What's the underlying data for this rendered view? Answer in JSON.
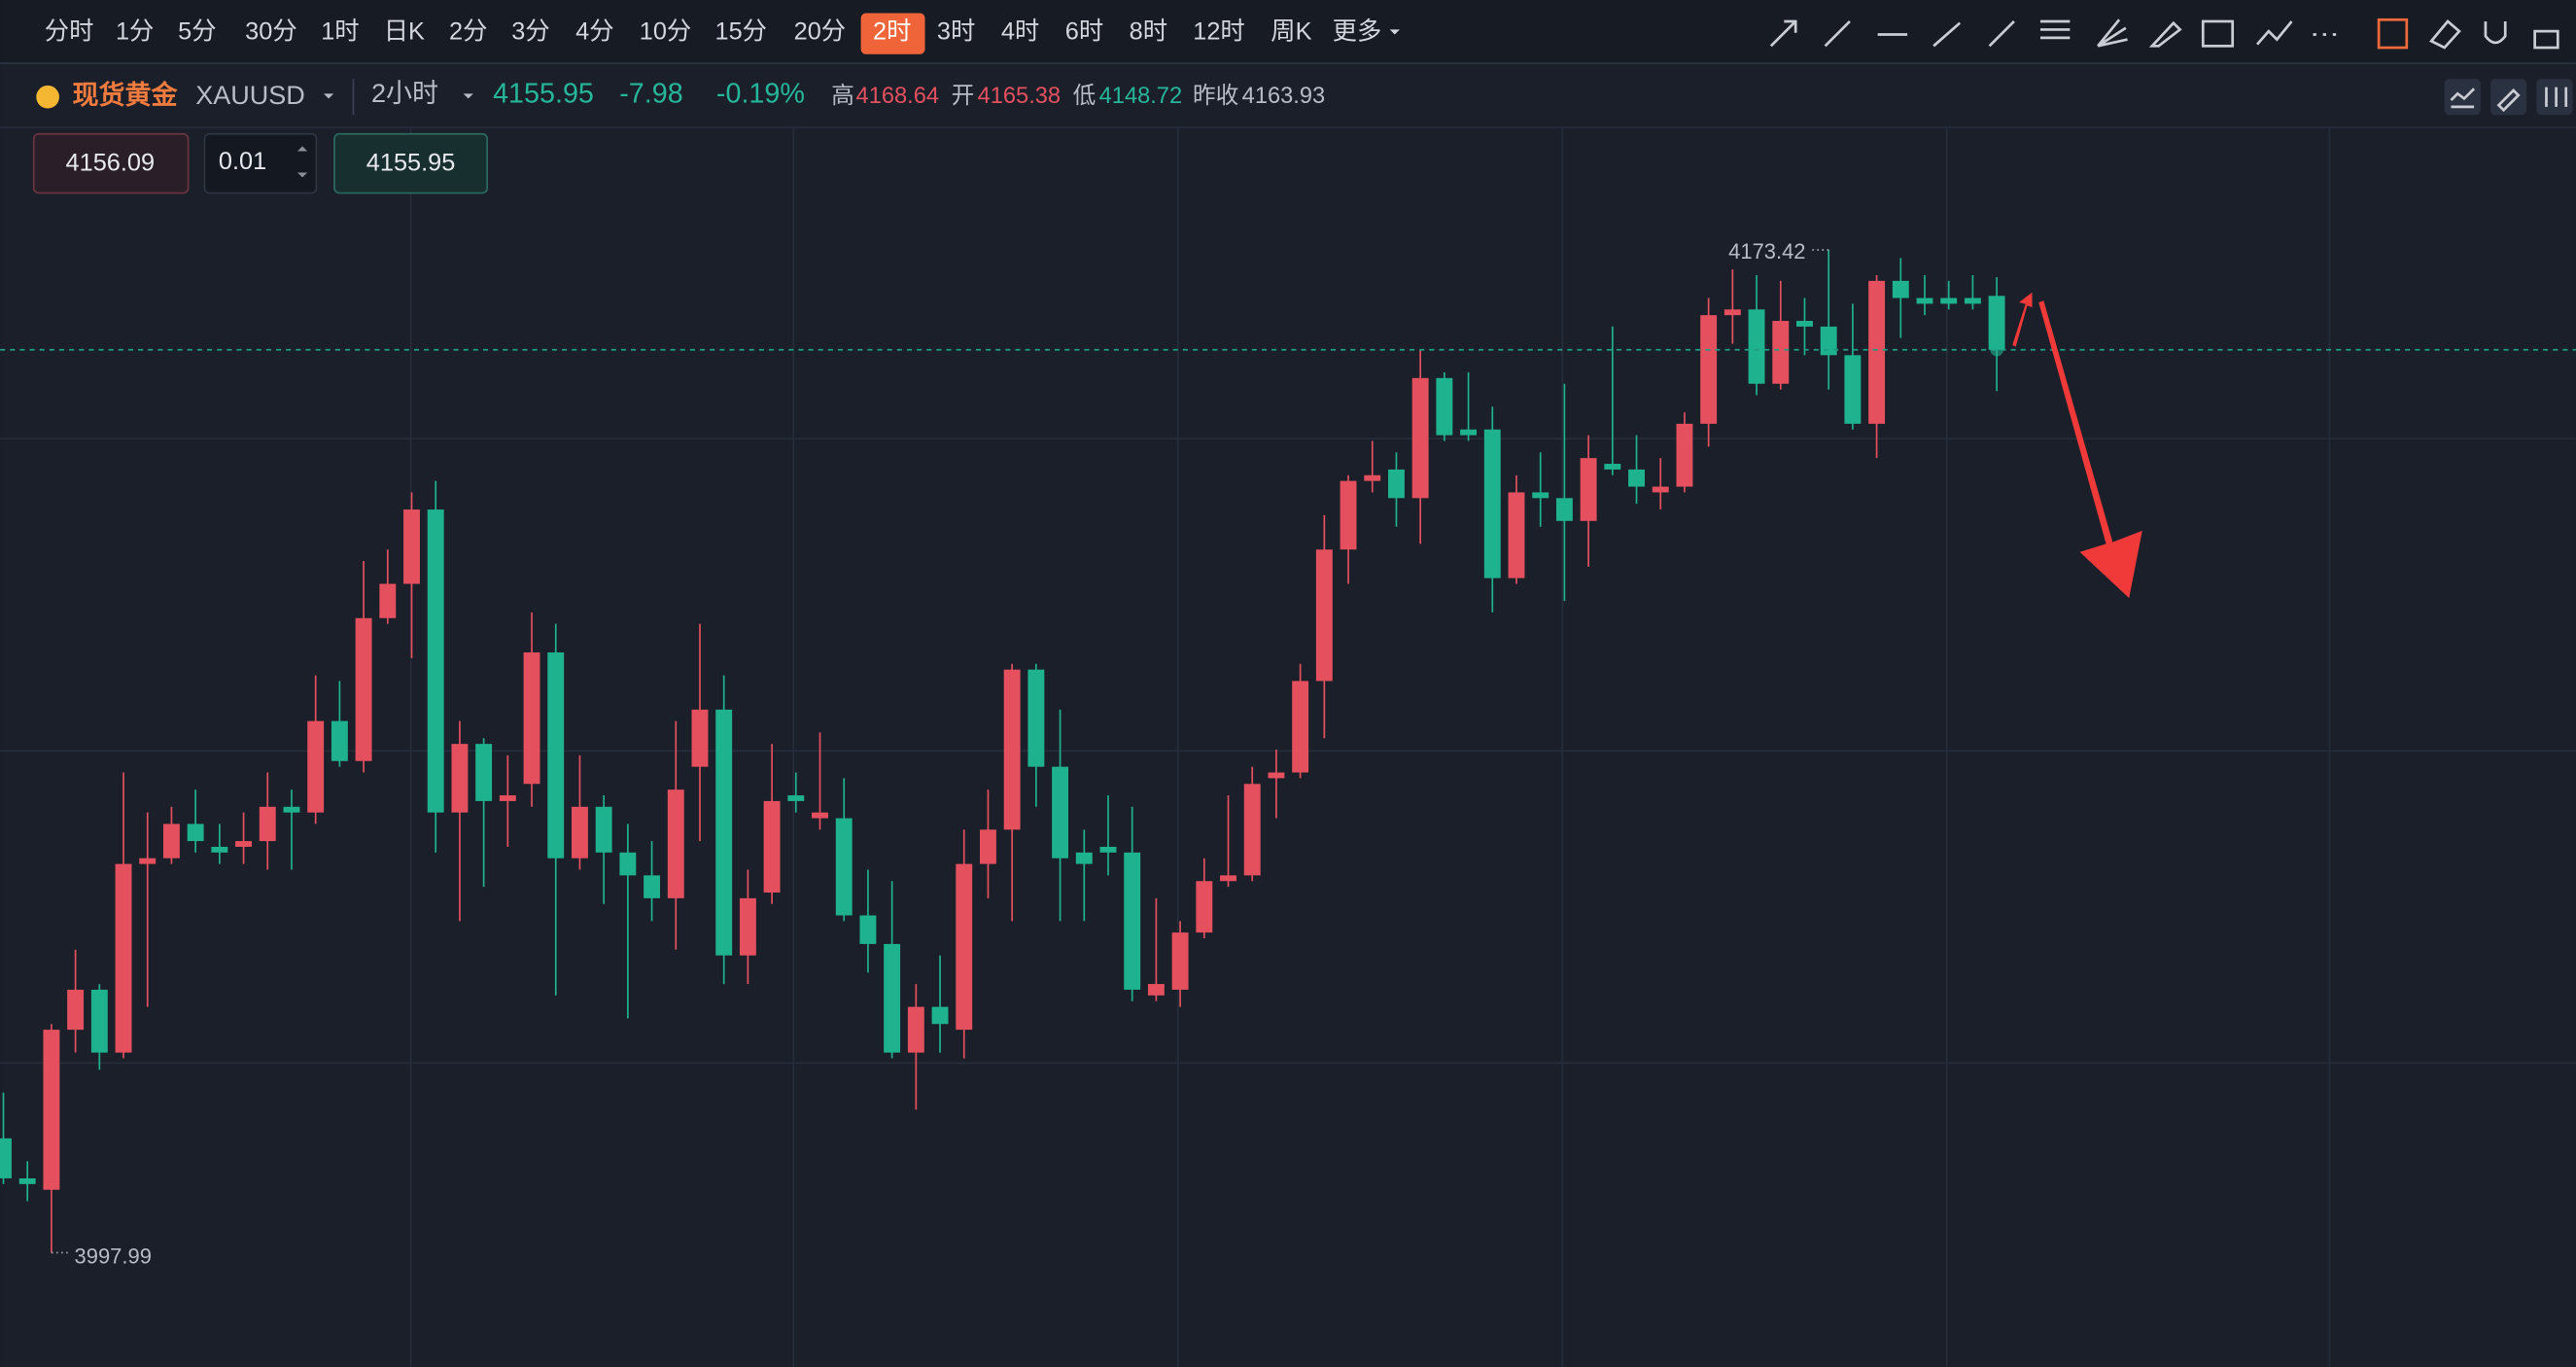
{
  "toolbar": {
    "intervals": [
      "分时",
      "1分",
      "5分",
      "30分",
      "1时",
      "日K",
      "2分",
      "3分",
      "4分",
      "10分",
      "15分",
      "20分",
      "2时",
      "3时",
      "4时",
      "6时",
      "8时",
      "12时",
      "周K"
    ],
    "active": 12,
    "more": "更多"
  },
  "symbol": {
    "name": "现货黄金",
    "code": "XAUUSD",
    "interval": "2小时",
    "price": "4155.95",
    "change": "-7.98",
    "change_pct": "-0.19%",
    "high_label": "高",
    "high": "4168.64",
    "open_label": "开",
    "open": "4165.38",
    "low_label": "低",
    "low": "4148.72",
    "prev_close_label": "昨收",
    "prev_close": "4163.93"
  },
  "order": {
    "sell": "4156.09",
    "qty": "0.01",
    "buy": "4155.95"
  },
  "chart_data": {
    "type": "candlestick",
    "up_color": "#e5505e",
    "down_color": "#1fb28f",
    "ylim": [
      3978,
      4195
    ],
    "open": [
      4018,
      4011,
      4009,
      4037,
      4044,
      4033,
      4066,
      4067,
      4073,
      4069,
      4069,
      4070,
      4076,
      4075,
      4091,
      4084,
      4109,
      4115,
      4128,
      4075,
      4087,
      4077,
      4080,
      4103,
      4067,
      4076,
      4068,
      4064,
      4060,
      4083,
      4093,
      4050,
      4061,
      4078,
      4074,
      4074,
      4057,
      4052,
      4033,
      4041,
      4037,
      4066,
      4072,
      4100,
      4083,
      4068,
      4069,
      4068,
      4043,
      4044,
      4054,
      4063,
      4064,
      4081,
      4082,
      4098,
      4121,
      4133,
      4135,
      4130,
      4151,
      4142,
      4142,
      4116,
      4131,
      4130,
      4126,
      4136,
      4135,
      4131,
      4132,
      4143,
      4162,
      4163,
      4150,
      4161,
      4160,
      4155,
      4143,
      4168,
      4165,
      4165,
      4165,
      4165.38
    ],
    "high": [
      4026,
      4014,
      4038,
      4051,
      4045,
      4082,
      4075,
      4076,
      4079,
      4073,
      4075,
      4082,
      4079,
      4099,
      4098,
      4119,
      4121,
      4131,
      4133,
      4091,
      4088,
      4085,
      4110,
      4108,
      4085,
      4078,
      4073,
      4070,
      4091,
      4108,
      4099,
      4065,
      4087,
      4082,
      4089,
      4081,
      4065,
      4063,
      4045,
      4050,
      4072,
      4079,
      4101,
      4101,
      4093,
      4072,
      4078,
      4076,
      4060,
      4056,
      4067,
      4078,
      4083,
      4086,
      4101,
      4127,
      4134,
      4140,
      4138,
      4156,
      4152,
      4152,
      4146,
      4134,
      4138,
      4150,
      4141,
      4160,
      4141,
      4137,
      4145,
      4165,
      4170,
      4169,
      4168,
      4165,
      4173.42,
      4164,
      4169,
      4172,
      4169,
      4168,
      4169,
      4168.64
    ],
    "low": [
      4010,
      4007,
      3997.99,
      4033,
      4030,
      4032,
      4041,
      4066,
      4068,
      4066,
      4066,
      4065,
      4065,
      4073,
      4083,
      4082,
      4108,
      4102,
      4068,
      4056,
      4062,
      4069,
      4076,
      4043,
      4065,
      4059,
      4039,
      4056,
      4051,
      4070,
      4045,
      4045,
      4059,
      4075,
      4072,
      4056,
      4047,
      4032,
      4023,
      4033,
      4032,
      4060,
      4056,
      4076,
      4056,
      4056,
      4064,
      4042,
      4042,
      4041,
      4053,
      4062,
      4063,
      4074,
      4081,
      4088,
      4115,
      4131,
      4125,
      4122,
      4140,
      4140,
      4110,
      4115,
      4125,
      4112,
      4118,
      4134,
      4129,
      4128,
      4131,
      4139,
      4157,
      4148,
      4149,
      4155,
      4149,
      4142,
      4137,
      4158,
      4162,
      4163,
      4163,
      4148.72
    ],
    "close": [
      4011,
      4010,
      4037,
      4044,
      4033,
      4066,
      4067,
      4073,
      4070,
      4068,
      4070,
      4076,
      4075,
      4091,
      4084,
      4109,
      4115,
      4128,
      4075,
      4087,
      4077,
      4078,
      4103,
      4067,
      4076,
      4068,
      4064,
      4060,
      4079,
      4093,
      4050,
      4060,
      4077,
      4077,
      4075,
      4057,
      4052,
      4033,
      4041,
      4038,
      4066,
      4072,
      4100,
      4083,
      4067,
      4066,
      4068,
      4044,
      4045,
      4054,
      4063,
      4064,
      4080,
      4082,
      4098,
      4121,
      4133,
      4134,
      4130,
      4151,
      4141,
      4141,
      4116,
      4131,
      4130,
      4126,
      4137,
      4135,
      4132,
      4132,
      4143,
      4162,
      4163,
      4150,
      4161,
      4160,
      4155,
      4143,
      4168,
      4165,
      4164,
      4164,
      4164,
      4155.95
    ]
  }
}
